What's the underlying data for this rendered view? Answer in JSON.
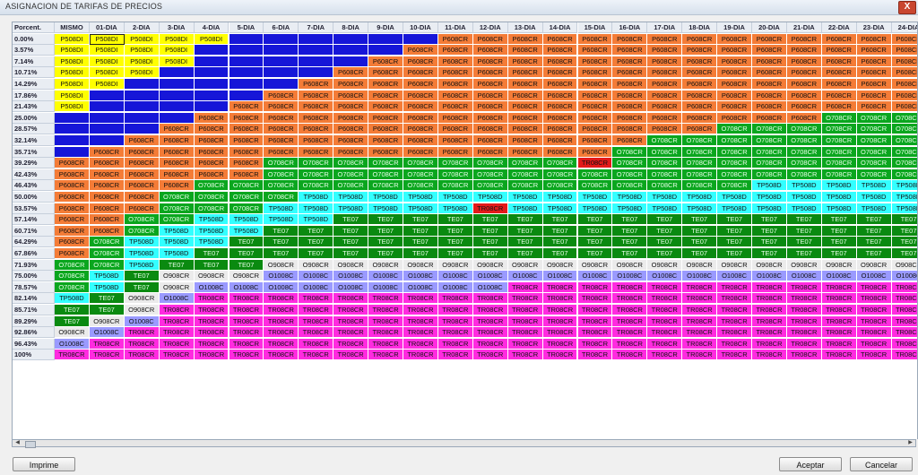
{
  "window": {
    "title": "ASIGNACION DE TARIFAS DE PRECIOS",
    "close_label": "X"
  },
  "buttons": {
    "print": "Imprime",
    "accept": "Aceptar",
    "cancel": "Cancelar"
  },
  "colors": {
    "Y": "#ffff00",
    "B": "#1616d8",
    "O": "#f47c37",
    "G": "#0aa61e",
    "C": "#33ffff",
    "D": "#0a8a10",
    "W": "#ebebeb",
    "L": "#9a9aff",
    "M": "#ff2be0",
    "R": "#e31a1a"
  },
  "labels": {
    "Y": "P508DI",
    "B": "",
    "O": "P608CR",
    "G": "O708CR",
    "C": "TP508D",
    "D": "TE07",
    "W": "O908CR",
    "L": "O1008C",
    "M": "TR08CR",
    "R": "TR08CR"
  },
  "grid": {
    "corner_label": "Porcent.",
    "columns": [
      "MISMO",
      "01-DIA",
      "2-DIA",
      "3-DIA",
      "4-DIA",
      "5-DIA",
      "6-DIA",
      "7-DIA",
      "8-DIA",
      "9-DIA",
      "10-DIA",
      "11-DIA",
      "12-DIA",
      "13-DIA",
      "14-DIA",
      "15-DIA",
      "16-DIA",
      "17-DIA",
      "18-DIA",
      "19-DIA",
      "20-DIA",
      "21-DIA",
      "22-DIA",
      "23-DIA",
      "24-DIA"
    ],
    "rows": [
      {
        "label": "0.00%",
        "cells": "YYYYYBBBBBBOOOOOOOOOOOOOO"
      },
      {
        "label": "3.57%",
        "cells": "YYYYBBBBBBOOOOOOOOOOOOOOO"
      },
      {
        "label": "7.14%",
        "cells": "YYYYBBBBBOOOOOOOOOOOOOOOO"
      },
      {
        "label": "10.71%",
        "cells": "YYYBBBBBOOOOOOOOOOOOOOOOO"
      },
      {
        "label": "14.29%",
        "cells": "YYBBBBBOOOOOOOOOOOOOOOOOO"
      },
      {
        "label": "17.86%",
        "cells": "YBBBBBOOOOOOOOOOOOOOOOOOO"
      },
      {
        "label": "21.43%",
        "cells": "YBBBBOOOOOOOOOOOOOOOOOOOO"
      },
      {
        "label": "25.00%",
        "cells": "BBBBOOOOOOOOOOOOOOOOOOGGG"
      },
      {
        "label": "28.57%",
        "cells": "BBBOOOOOOOOOOOOOOOOGGGGGG"
      },
      {
        "label": "32.14%",
        "cells": "BBOOOOOOOOOOOOOOOGGGGGGGG"
      },
      {
        "label": "35.71%",
        "cells": "BOOOOOOOOOOOOOOOGGGGGGGGG"
      },
      {
        "label": "39.29%",
        "cells": "OOOOOOGGGGGGGGGRGGGGGGGGG"
      },
      {
        "label": "42.43%",
        "cells": "OOOOOOGGGGGGGGGGGGGGGGGGG"
      },
      {
        "label": "46.43%",
        "cells": "OOOOGGGGGGGGGGGGGGGGCCCCC"
      },
      {
        "label": "50.00%",
        "cells": "OOOGGGGCCCCCCCCCCCCCCCCCC"
      },
      {
        "label": "53.57%",
        "cells": "OOOGGGCCCCCCRCCCCCCCCCCCC"
      },
      {
        "label": "57.14%",
        "cells": "OOGGCCCCDDDDDDDDDDDDDDDDD"
      },
      {
        "label": "60.71%",
        "cells": "OOGCCCDDDDDDDDDDDDDDDDDDD"
      },
      {
        "label": "64.29%",
        "cells": "OGCCCDDDDDDDDDDDDDDDDDDDD"
      },
      {
        "label": "67.86%",
        "cells": "OGCCDDDDDDDDDDDDDDDDDDDDD"
      },
      {
        "label": "71.93%",
        "cells": "GGCDDDWWWWWWWWWWWWWWWWWWW"
      },
      {
        "label": "75.00%",
        "cells": "GCDWWWLLLLLLLLLLLLLLLLLLL"
      },
      {
        "label": "78.57%",
        "cells": "GCDWLLLLLLLLLMMMMMMMMMMMM"
      },
      {
        "label": "82.14%",
        "cells": "CDWLMMMMMMMMMMMMMMMMMMMMM"
      },
      {
        "label": "85.71%",
        "cells": "DDWMMMMMMMMMMMMMMMMMMMMMM"
      },
      {
        "label": "89.29%",
        "cells": "DWLMMMMMMMMMMMMMMMMMMMMMM"
      },
      {
        "label": "92.86%",
        "cells": "WLMMMMMMMMMMMMMMMMMMMMMMM"
      },
      {
        "label": "96.43%",
        "cells": "LMMMMMMMMMMMMMMMMMMMMMMMM"
      },
      {
        "label": "100%",
        "cells": "MMMMMMMMMMMMMMMMMMMMMMMMM"
      }
    ]
  }
}
